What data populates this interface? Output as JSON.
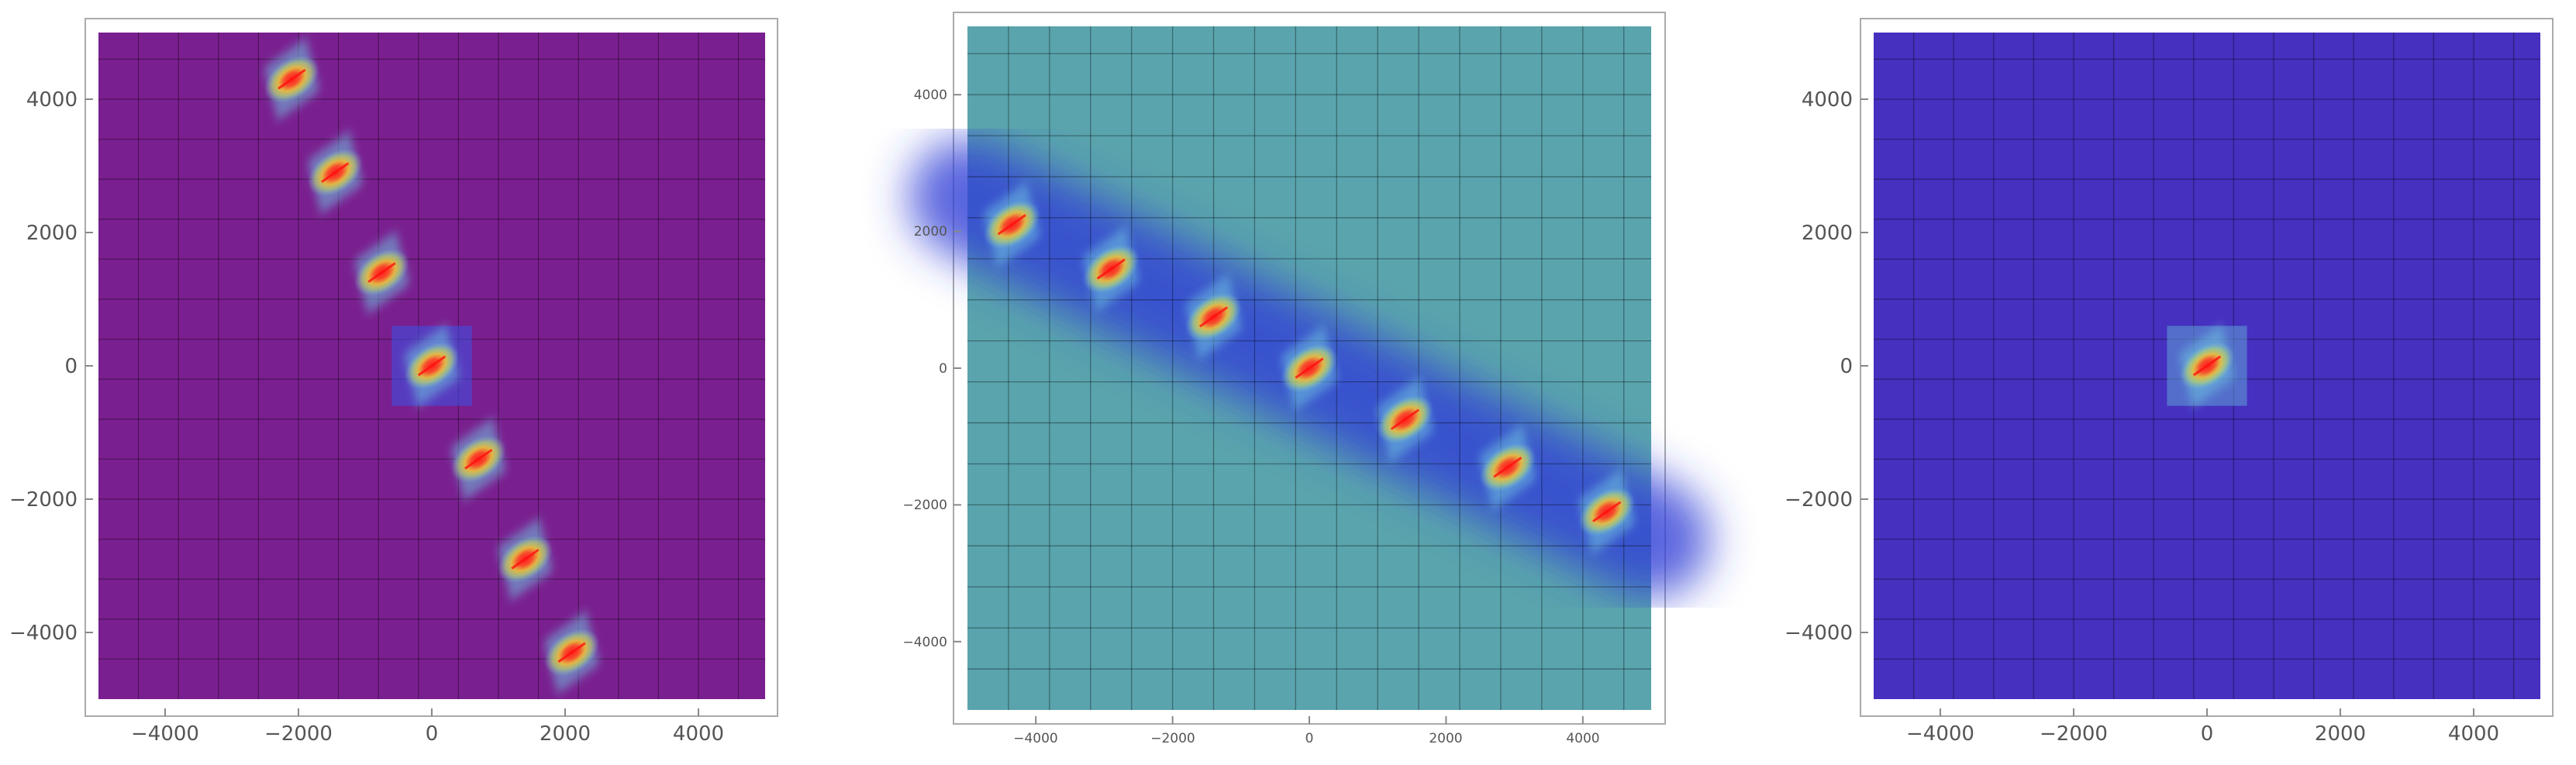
{
  "chart_data": [
    {
      "type": "heatmap",
      "title": "",
      "xlabel": "",
      "ylabel": "",
      "xlim": [
        -5000,
        5000
      ],
      "ylim": [
        -5000,
        5000
      ],
      "grid": true,
      "grid_step": 600,
      "background_color": "#7a1f8f",
      "x_ticks": [
        -4000,
        -2000,
        0,
        2000,
        4000
      ],
      "y_ticks": [
        4000,
        2000,
        0,
        -2000,
        -4000
      ],
      "x_tick_labels": [
        "−4000",
        "−2000",
        "0",
        "2000",
        "4000"
      ],
      "y_tick_labels": [
        "4000",
        "2000",
        "0",
        "−2000",
        "−4000"
      ],
      "hotspots": [
        {
          "x": -2100,
          "y": 4300
        },
        {
          "x": -1450,
          "y": 2900
        },
        {
          "x": -750,
          "y": 1400
        },
        {
          "x": 0,
          "y": 0
        },
        {
          "x": 700,
          "y": -1400
        },
        {
          "x": 1400,
          "y": -2900
        },
        {
          "x": 2100,
          "y": -4300
        }
      ],
      "highlight_box": {
        "x": 0,
        "y": 0,
        "half": 600,
        "color": "#3a52e8"
      },
      "band": null
    },
    {
      "type": "heatmap",
      "title": "",
      "xlabel": "",
      "ylabel": "",
      "xlim": [
        -5000,
        5000
      ],
      "ylim": [
        -5000,
        5000
      ],
      "grid": true,
      "grid_step": 600,
      "background_color": "#5aa4ad",
      "x_ticks": [
        -4000,
        -2000,
        0,
        2000,
        4000
      ],
      "y_ticks": [
        4000,
        2000,
        0,
        -2000,
        -4000
      ],
      "x_tick_labels": [
        "−4000",
        "−2000",
        "0",
        "2000",
        "4000"
      ],
      "y_tick_labels": [
        "4000",
        "2000",
        "0",
        "−2000",
        "−4000"
      ],
      "hotspots": [
        {
          "x": -4350,
          "y": 2100
        },
        {
          "x": -2900,
          "y": 1450
        },
        {
          "x": -1400,
          "y": 750
        },
        {
          "x": 0,
          "y": 0
        },
        {
          "x": 1400,
          "y": -750
        },
        {
          "x": 2900,
          "y": -1450
        },
        {
          "x": 4350,
          "y": -2100
        }
      ],
      "highlight_box": null,
      "band": {
        "x1": -5000,
        "y1": 2500,
        "x2": 5000,
        "y2": -2500,
        "color": "#2f3fd6"
      }
    },
    {
      "type": "heatmap",
      "title": "",
      "xlabel": "",
      "ylabel": "",
      "xlim": [
        -5000,
        5000
      ],
      "ylim": [
        -5000,
        5000
      ],
      "grid": true,
      "grid_step": 600,
      "background_color": "#4530bf",
      "x_ticks": [
        -4000,
        -2000,
        0,
        2000,
        4000
      ],
      "y_ticks": [
        4000,
        2000,
        0,
        -2000,
        -4000
      ],
      "x_tick_labels": [
        "−4000",
        "−2000",
        "0",
        "2000",
        "4000"
      ],
      "y_tick_labels": [
        "4000",
        "2000",
        "0",
        "−2000",
        "−4000"
      ],
      "hotspots": [
        {
          "x": 0,
          "y": 0
        }
      ],
      "highlight_box": {
        "x": 0,
        "y": 0,
        "half": 600,
        "color": "#5fa3d6"
      },
      "band": null
    }
  ]
}
